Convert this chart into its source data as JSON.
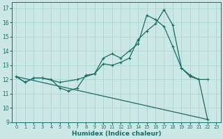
{
  "xlabel": "Humidex (Indice chaleur)",
  "xlim": [
    -0.5,
    23.5
  ],
  "ylim": [
    9,
    17.4
  ],
  "yticks": [
    9,
    10,
    11,
    12,
    13,
    14,
    15,
    16,
    17
  ],
  "xticks": [
    0,
    1,
    2,
    3,
    4,
    5,
    6,
    7,
    8,
    9,
    10,
    11,
    12,
    13,
    14,
    15,
    16,
    17,
    18,
    19,
    20,
    21,
    22,
    23
  ],
  "bg_color": "#cce8e6",
  "grid_color": "#aad4d0",
  "line_color": "#1a6b63",
  "lines": [
    {
      "x": [
        0,
        1,
        2,
        3,
        4,
        5,
        6,
        7,
        8,
        9,
        10,
        11,
        12,
        13,
        14,
        15,
        16,
        17,
        18,
        19,
        20,
        21,
        22
      ],
      "y": [
        12.2,
        11.8,
        12.1,
        12.1,
        12.0,
        11.4,
        11.2,
        11.4,
        12.3,
        12.4,
        13.1,
        13.0,
        13.2,
        13.5,
        14.8,
        15.4,
        15.9,
        16.9,
        15.8,
        12.8,
        12.3,
        12.0,
        9.2
      ],
      "marker": true
    },
    {
      "x": [
        0,
        1,
        2,
        3,
        5,
        7,
        9,
        10,
        11,
        12,
        13,
        14,
        15,
        16,
        17,
        18,
        19,
        20,
        21,
        22
      ],
      "y": [
        12.2,
        11.8,
        12.1,
        12.1,
        11.8,
        12.0,
        12.4,
        13.5,
        13.8,
        13.5,
        14.0,
        14.5,
        16.5,
        16.2,
        15.7,
        14.3,
        12.8,
        12.2,
        12.0,
        12.0
      ],
      "marker": true
    },
    {
      "x": [
        0,
        22
      ],
      "y": [
        12.2,
        9.2
      ],
      "marker": false
    }
  ]
}
